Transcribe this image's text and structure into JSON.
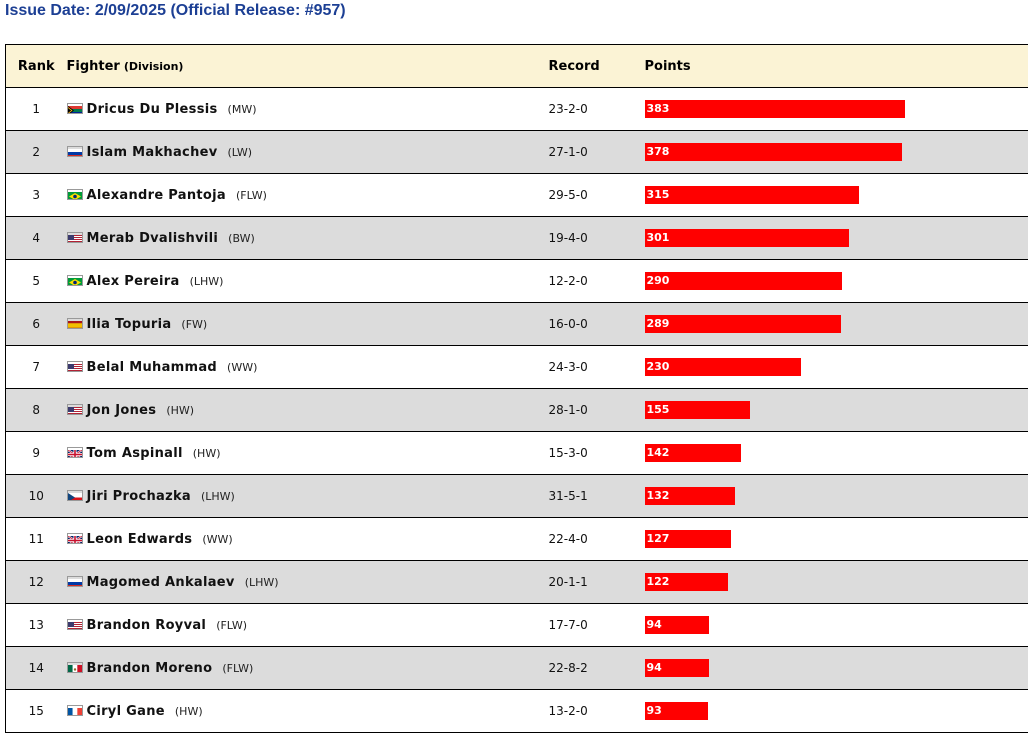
{
  "issue_line": "Issue Date: 2/09/2025 (Official Release: #957)",
  "headers": {
    "rank": "Rank",
    "fighter": "Fighter",
    "division": "(Division)",
    "record": "Record",
    "points": "Points"
  },
  "max_points": 383,
  "bar_color": "#ff0000",
  "header_bg": "#fbf3d5",
  "alt_row_bg": "#dcdcdc",
  "rows": [
    {
      "rank": "1",
      "name": "Dricus Du Plessis",
      "division": "(MW)",
      "record": "23-2-0",
      "points": 383,
      "flag": "za-flag-icon"
    },
    {
      "rank": "2",
      "name": "Islam Makhachev",
      "division": "(LW)",
      "record": "27-1-0",
      "points": 378,
      "flag": "ru-flag-icon"
    },
    {
      "rank": "3",
      "name": "Alexandre Pantoja",
      "division": "(FLW)",
      "record": "29-5-0",
      "points": 315,
      "flag": "br-flag-icon"
    },
    {
      "rank": "4",
      "name": "Merab Dvalishvili",
      "division": "(BW)",
      "record": "19-4-0",
      "points": 301,
      "flag": "us-flag-icon"
    },
    {
      "rank": "5",
      "name": "Alex Pereira",
      "division": "(LHW)",
      "record": "12-2-0",
      "points": 290,
      "flag": "br-flag-icon"
    },
    {
      "rank": "6",
      "name": "Ilia Topuria",
      "division": "(FW)",
      "record": "16-0-0",
      "points": 289,
      "flag": "es-flag-icon"
    },
    {
      "rank": "7",
      "name": "Belal Muhammad",
      "division": "(WW)",
      "record": "24-3-0",
      "points": 230,
      "flag": "us-flag-icon"
    },
    {
      "rank": "8",
      "name": "Jon Jones",
      "division": "(HW)",
      "record": "28-1-0",
      "points": 155,
      "flag": "us-flag-icon"
    },
    {
      "rank": "9",
      "name": "Tom Aspinall",
      "division": "(HW)",
      "record": "15-3-0",
      "points": 142,
      "flag": "gb-flag-icon"
    },
    {
      "rank": "10",
      "name": "Jiri Prochazka",
      "division": "(LHW)",
      "record": "31-5-1",
      "points": 132,
      "flag": "cz-flag-icon"
    },
    {
      "rank": "11",
      "name": "Leon Edwards",
      "division": "(WW)",
      "record": "22-4-0",
      "points": 127,
      "flag": "gb-flag-icon"
    },
    {
      "rank": "12",
      "name": "Magomed Ankalaev",
      "division": "(LHW)",
      "record": "20-1-1",
      "points": 122,
      "flag": "ru-flag-icon"
    },
    {
      "rank": "13",
      "name": "Brandon Royval",
      "division": "(FLW)",
      "record": "17-7-0",
      "points": 94,
      "flag": "us-flag-icon"
    },
    {
      "rank": "14",
      "name": "Brandon Moreno",
      "division": "(FLW)",
      "record": "22-8-2",
      "points": 94,
      "flag": "mx-flag-icon"
    },
    {
      "rank": "15",
      "name": "Ciryl Gane",
      "division": "(HW)",
      "record": "13-2-0",
      "points": 93,
      "flag": "fr-flag-icon"
    }
  ]
}
